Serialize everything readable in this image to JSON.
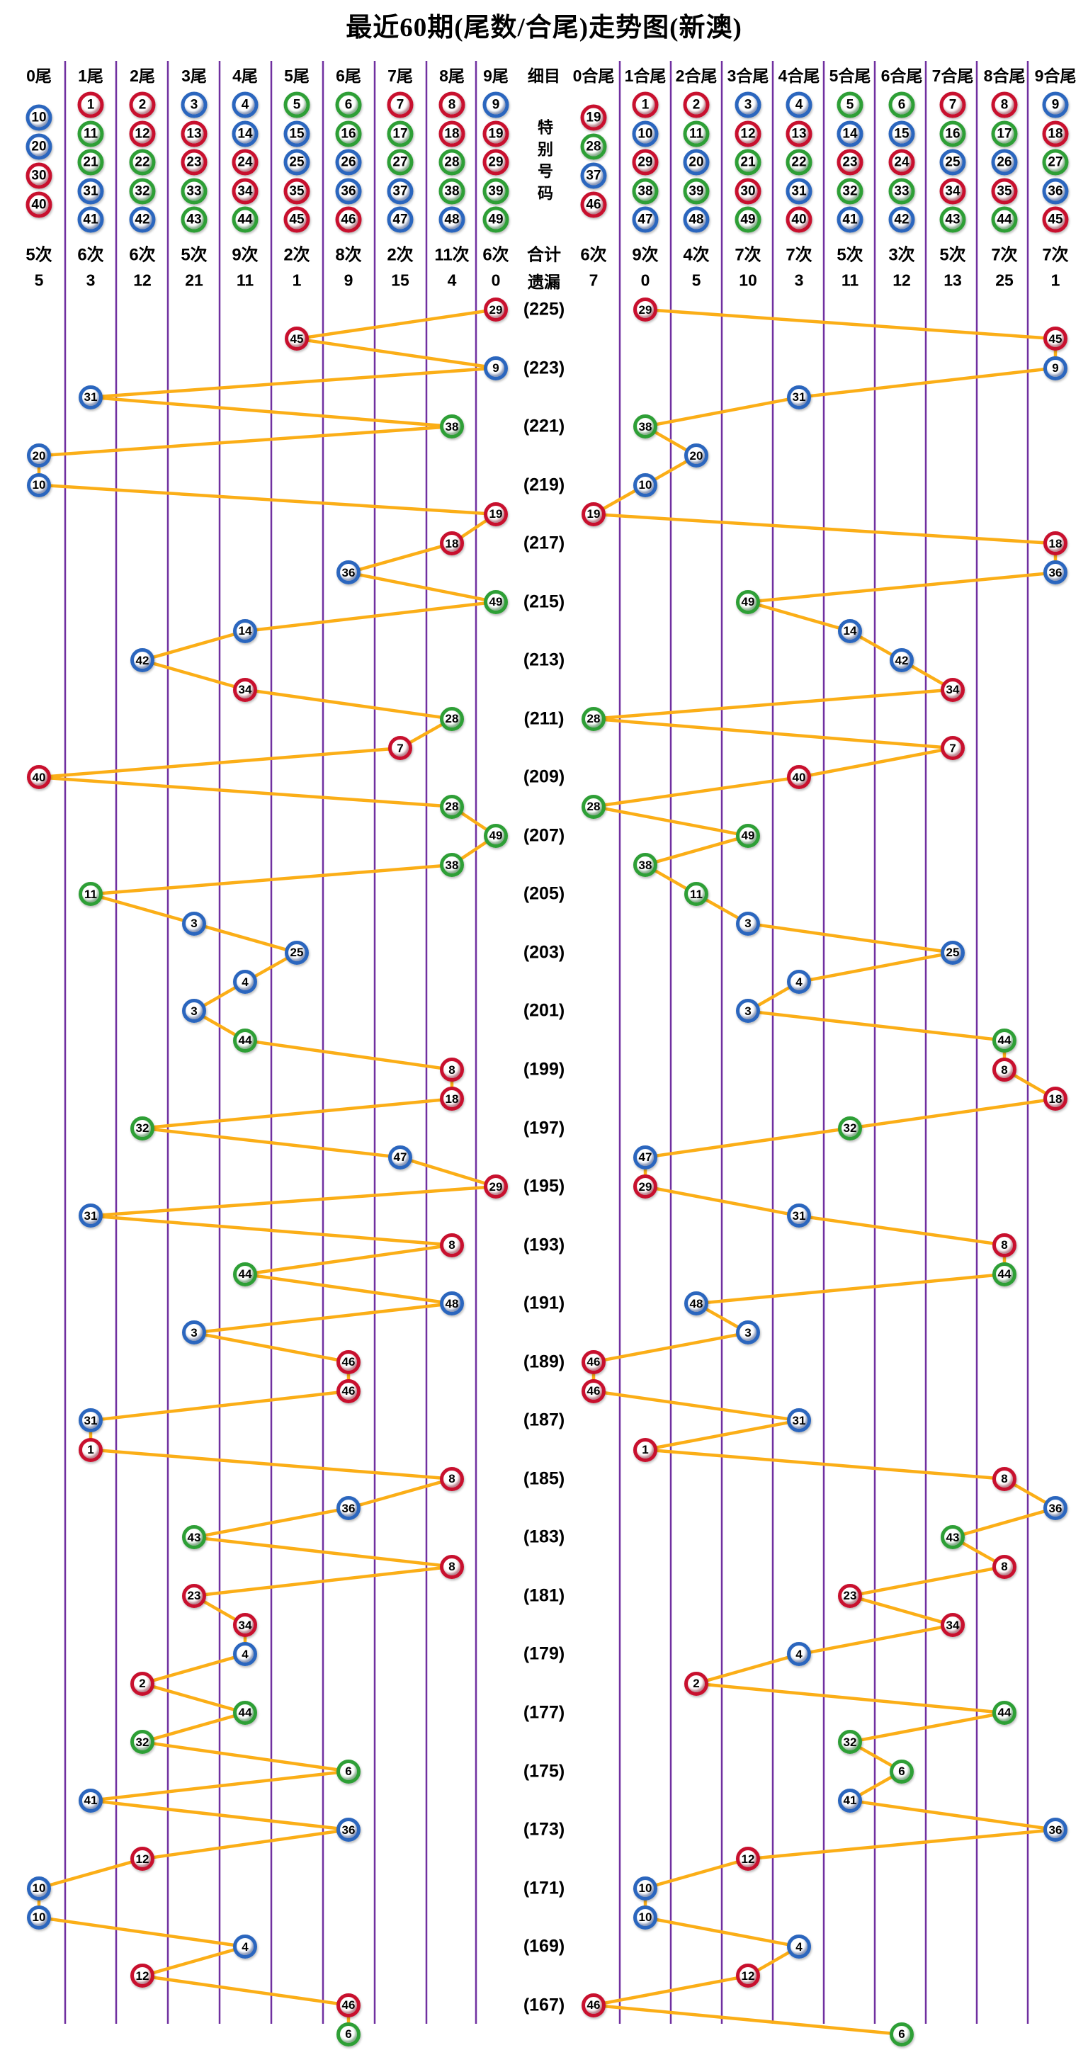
{
  "title": "最近60期(尾数/合尾)走势图(新澳)",
  "middle_column": {
    "header": "细目",
    "body": "特别号码",
    "row_count": "合计",
    "row_miss": "遗漏"
  },
  "left_section": {
    "columns": [
      {
        "label": "0尾",
        "balls": [
          10,
          20,
          30,
          40
        ],
        "count": "5次",
        "miss": "5"
      },
      {
        "label": "1尾",
        "balls": [
          1,
          11,
          21,
          31,
          41
        ],
        "count": "6次",
        "miss": "3"
      },
      {
        "label": "2尾",
        "balls": [
          2,
          12,
          22,
          32,
          42
        ],
        "count": "6次",
        "miss": "12"
      },
      {
        "label": "3尾",
        "balls": [
          3,
          13,
          23,
          33,
          43
        ],
        "count": "5次",
        "miss": "21"
      },
      {
        "label": "4尾",
        "balls": [
          4,
          14,
          24,
          34,
          44
        ],
        "count": "9次",
        "miss": "11"
      },
      {
        "label": "5尾",
        "balls": [
          5,
          15,
          25,
          35,
          45
        ],
        "count": "2次",
        "miss": "1"
      },
      {
        "label": "6尾",
        "balls": [
          6,
          16,
          26,
          36,
          46
        ],
        "count": "8次",
        "miss": "9"
      },
      {
        "label": "7尾",
        "balls": [
          7,
          17,
          27,
          37,
          47
        ],
        "count": "2次",
        "miss": "15"
      },
      {
        "label": "8尾",
        "balls": [
          8,
          18,
          28,
          38,
          48
        ],
        "count": "11次",
        "miss": "4"
      },
      {
        "label": "9尾",
        "balls": [
          9,
          19,
          29,
          39,
          49
        ],
        "count": "6次",
        "miss": "0"
      }
    ]
  },
  "right_section": {
    "columns": [
      {
        "label": "0合尾",
        "balls": [
          19,
          28,
          37,
          46
        ],
        "count": "6次",
        "miss": "7"
      },
      {
        "label": "1合尾",
        "balls": [
          1,
          10,
          29,
          38,
          47
        ],
        "count": "9次",
        "miss": "0"
      },
      {
        "label": "2合尾",
        "balls": [
          2,
          11,
          20,
          39,
          48
        ],
        "count": "4次",
        "miss": "5"
      },
      {
        "label": "3合尾",
        "balls": [
          3,
          12,
          21,
          30,
          49
        ],
        "count": "7次",
        "miss": "10"
      },
      {
        "label": "4合尾",
        "balls": [
          4,
          13,
          22,
          31,
          40
        ],
        "count": "7次",
        "miss": "3"
      },
      {
        "label": "5合尾",
        "balls": [
          5,
          14,
          23,
          32,
          41
        ],
        "count": "5次",
        "miss": "11"
      },
      {
        "label": "6合尾",
        "balls": [
          6,
          15,
          24,
          33,
          42
        ],
        "count": "3次",
        "miss": "12"
      },
      {
        "label": "7合尾",
        "balls": [
          7,
          16,
          25,
          34,
          43
        ],
        "count": "5次",
        "miss": "13"
      },
      {
        "label": "8合尾",
        "balls": [
          8,
          17,
          26,
          35,
          44
        ],
        "count": "7次",
        "miss": "25"
      },
      {
        "label": "9合尾",
        "balls": [
          9,
          18,
          27,
          36,
          45
        ],
        "count": "7次",
        "miss": "1"
      }
    ]
  },
  "chart_data": {
    "type": "scatter",
    "description": "Mark-Six style trend chart: each row is one draw (newest at top). The special number is plotted in the left block by its tail digit (number mod 10) and in the right block by the tail of its digit sum (合尾). Consecutive points are joined by orange lines. Period numbers are labelled on every second row in the centre.",
    "rows": 60,
    "top_is_newest": true,
    "special_numbers": [
      29,
      45,
      9,
      31,
      38,
      20,
      10,
      19,
      18,
      36,
      49,
      14,
      42,
      34,
      28,
      7,
      40,
      28,
      49,
      38,
      11,
      3,
      25,
      4,
      3,
      44,
      8,
      18,
      32,
      47,
      29,
      31,
      8,
      44,
      48,
      3,
      46,
      46,
      31,
      1,
      8,
      36,
      43,
      8,
      23,
      34,
      4,
      2,
      44,
      32,
      6,
      41,
      36,
      12,
      10,
      10,
      4,
      12,
      46,
      6
    ],
    "period_labels": [
      "(225)",
      "(223)",
      "(221)",
      "(219)",
      "(217)",
      "(215)",
      "(213)",
      "(211)",
      "(209)",
      "(207)",
      "(205)",
      "(203)",
      "(201)",
      "(199)",
      "(197)",
      "(195)",
      "(193)",
      "(191)",
      "(189)",
      "(187)",
      "(185)",
      "(183)",
      "(181)",
      "(179)",
      "(177)",
      "(175)",
      "(173)",
      "(171)",
      "(169)",
      "(167)"
    ],
    "period_label_rows": "odd rows 1,3,...,59",
    "left_axis_label": "尾数 0尾-9尾",
    "right_axis_label": "合尾 0合尾-9合尾"
  },
  "ball_colors": {
    "red": [
      1,
      2,
      7,
      8,
      12,
      13,
      18,
      19,
      23,
      24,
      29,
      30,
      34,
      35,
      40,
      45,
      46
    ],
    "blue": [
      3,
      4,
      9,
      10,
      14,
      15,
      20,
      25,
      26,
      31,
      36,
      37,
      41,
      42,
      47,
      48
    ],
    "green": [
      5,
      6,
      11,
      16,
      17,
      21,
      22,
      27,
      28,
      32,
      33,
      38,
      39,
      43,
      44,
      49
    ]
  },
  "colors": {
    "red": "#C8102E",
    "blue": "#2B66BE",
    "green": "#2E9F36",
    "line": "#FBAE17",
    "divider": "#7030A0",
    "text": "#000000",
    "background": "#FFFFFF"
  }
}
